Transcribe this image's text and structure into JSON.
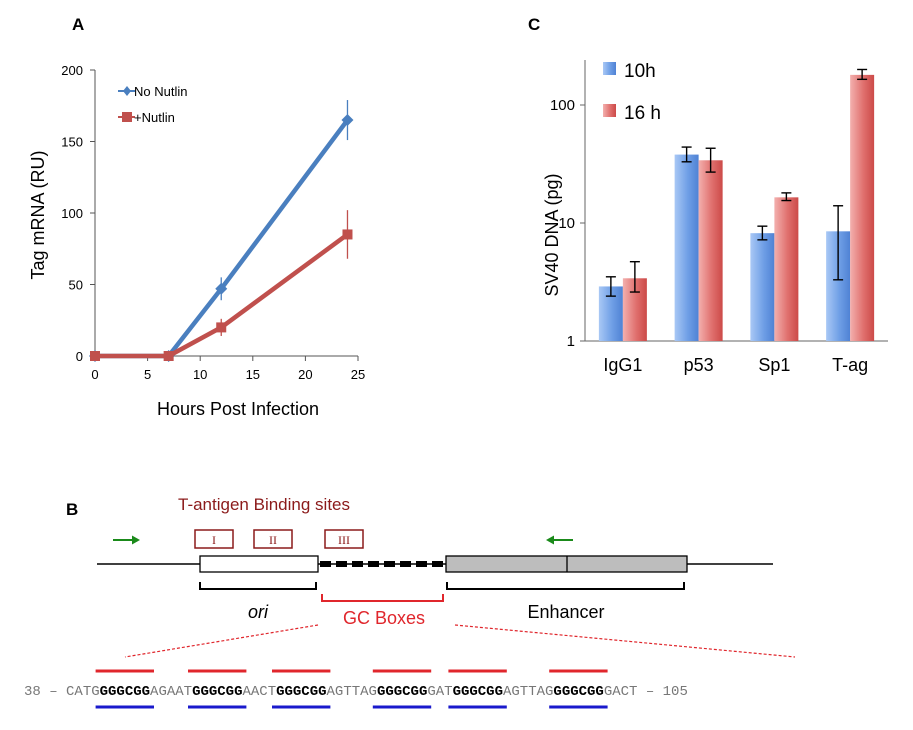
{
  "chart_data": [
    {
      "panel": "A",
      "type": "line",
      "title": "",
      "xlabel": "Hours Post Infection",
      "ylabel": "Tag mRNA  (RU)",
      "xlim": [
        0,
        25
      ],
      "ylim": [
        0,
        200
      ],
      "xticks": [
        0,
        5,
        10,
        15,
        20,
        25
      ],
      "yticks": [
        0,
        50,
        100,
        150,
        200
      ],
      "legend": "top-left",
      "series": [
        {
          "name": "No Nutlin",
          "color": "#4a7fbf",
          "marker": "diamond",
          "x": [
            0,
            7,
            12,
            24
          ],
          "y": [
            0,
            0,
            47,
            165
          ],
          "err": [
            0,
            0,
            8,
            14
          ]
        },
        {
          "name": "+Nutlin",
          "color": "#c0504d",
          "marker": "square",
          "x": [
            0,
            7,
            12,
            24
          ],
          "y": [
            0,
            0,
            20,
            85
          ],
          "err": [
            0,
            0,
            6,
            17
          ]
        }
      ]
    },
    {
      "panel": "C",
      "type": "bar",
      "title": "",
      "xlabel": "",
      "ylabel": "SV40 DNA (pg)",
      "yscale": "log",
      "ylim": [
        1,
        300
      ],
      "yticks": [
        1,
        10,
        100
      ],
      "legend": "top-left",
      "categories": [
        "IgG1",
        "p53",
        "Sp1",
        "T-ag"
      ],
      "series": [
        {
          "name": "10h",
          "color": "#6f9fe6",
          "values": [
            2.9,
            38,
            8.2,
            8.5
          ],
          "err_low": [
            2.4,
            33,
            7.2,
            3.3
          ],
          "err_high": [
            3.5,
            44,
            9.4,
            14
          ]
        },
        {
          "name": "16 h",
          "color": "#e0706e",
          "values": [
            3.4,
            34,
            16.5,
            180
          ],
          "err_low": [
            2.6,
            27,
            15.5,
            165
          ],
          "err_high": [
            4.7,
            43,
            18,
            200
          ]
        }
      ]
    }
  ],
  "panelB": {
    "letter": "B",
    "title": "T-antigen Binding sites",
    "sites": [
      "I",
      "II",
      "III"
    ],
    "ori_label": "ori",
    "gc_label": "GC Boxes",
    "enhancer_label": "Enhancer",
    "seq_start": "38 –",
    "seq_end": "– 105",
    "sequence": [
      {
        "t": "CATG",
        "b": false
      },
      {
        "t": "GGGCGG",
        "b": true
      },
      {
        "t": "AGAAT",
        "b": false
      },
      {
        "t": "GGGCGG",
        "b": true
      },
      {
        "t": "AACT",
        "b": false
      },
      {
        "t": "GGGCGG",
        "b": true
      },
      {
        "t": "AGTTAG",
        "b": false
      },
      {
        "t": "GGGCGG",
        "b": true
      },
      {
        "t": "GAT",
        "b": false
      },
      {
        "t": "GGGCGG",
        "b": true
      },
      {
        "t": "AGTTAG",
        "b": false
      },
      {
        "t": "GGGCGG",
        "b": true
      },
      {
        "t": "GACT",
        "b": false
      }
    ]
  },
  "colors": {
    "blue_line": "#4a7fbf",
    "red_line": "#c0504d",
    "bar_blue": "#6f9fe6",
    "bar_red": "#e0706e",
    "dark_red": "#8b1a1a",
    "gc_red": "#e0262c",
    "green": "#1a8a1a",
    "underline_blue": "#1a1acc"
  }
}
